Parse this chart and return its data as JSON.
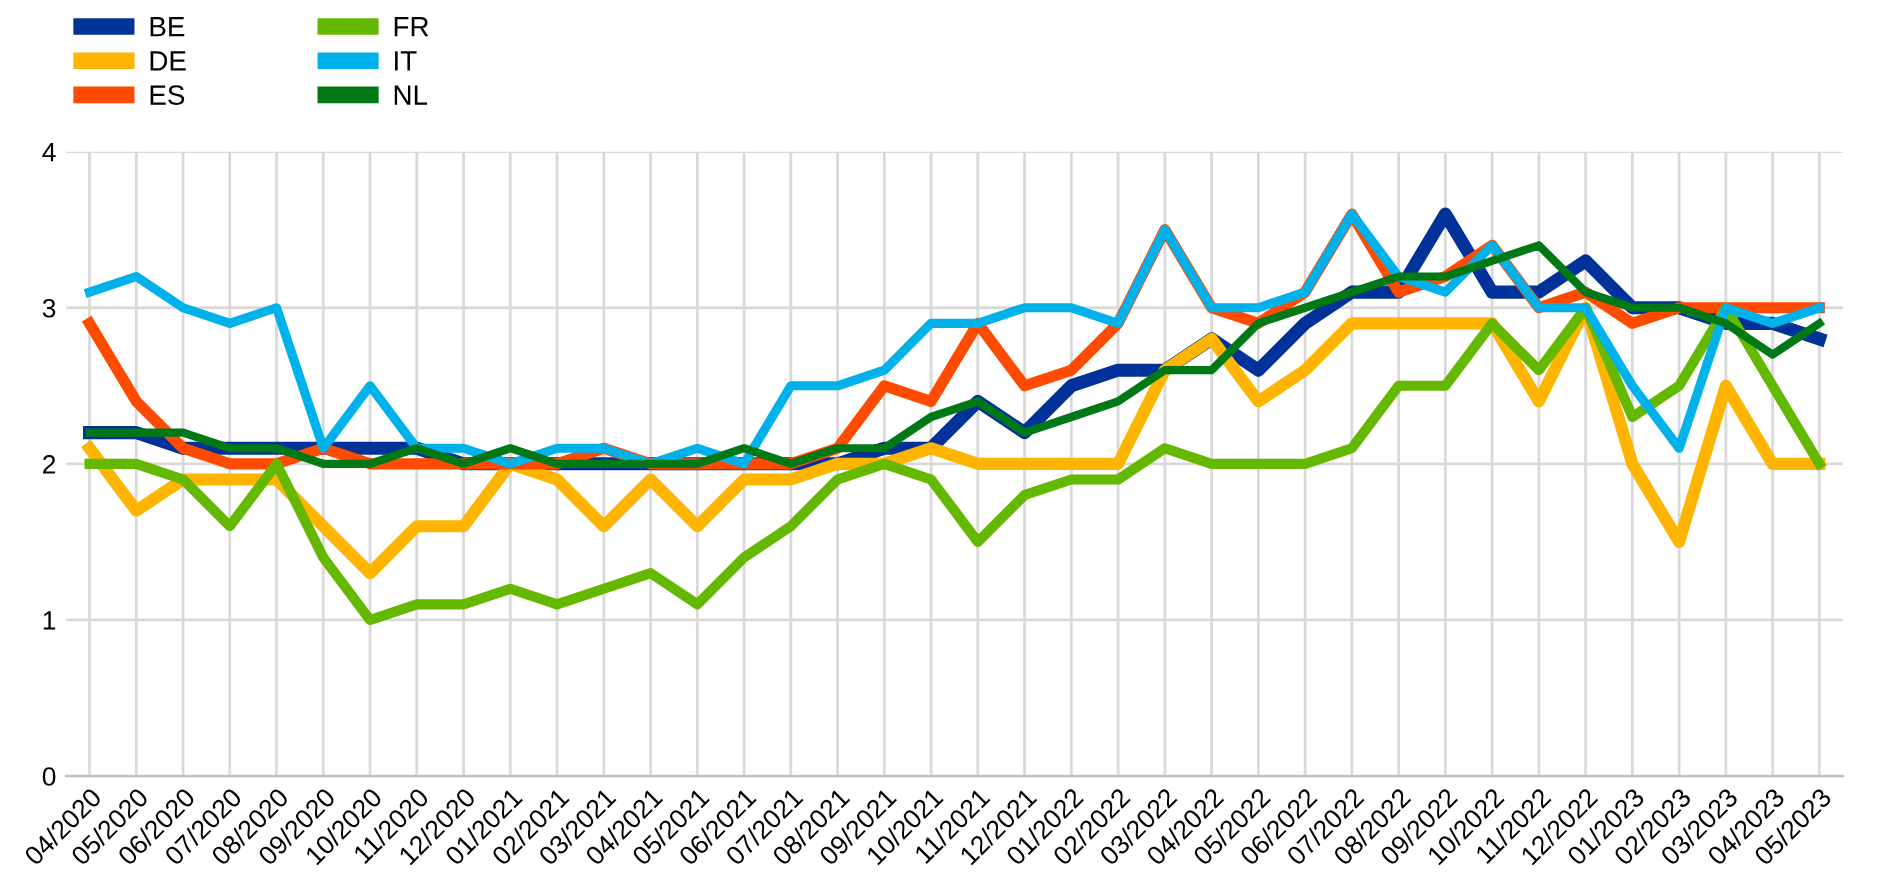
{
  "chart_data": {
    "type": "line",
    "categories": [
      "04/2020",
      "05/2020",
      "06/2020",
      "07/2020",
      "08/2020",
      "09/2020",
      "10/2020",
      "11/2020",
      "12/2020",
      "01/2021",
      "02/2021",
      "03/2021",
      "04/2021",
      "05/2021",
      "06/2021",
      "07/2021",
      "08/2021",
      "09/2021",
      "10/2021",
      "11/2021",
      "12/2021",
      "01/2022",
      "02/2022",
      "03/2022",
      "04/2022",
      "05/2022",
      "06/2022",
      "07/2022",
      "08/2022",
      "09/2022",
      "10/2022",
      "11/2022",
      "12/2022",
      "01/2023",
      "02/2023",
      "03/2023",
      "04/2023",
      "05/2023"
    ],
    "series": [
      {
        "name": "BE",
        "color": "#003299",
        "values": [
          2.2,
          2.2,
          2.1,
          2.1,
          2.1,
          2.1,
          2.1,
          2.1,
          2.0,
          2.0,
          2.0,
          2.0,
          2.0,
          2.0,
          2.0,
          2.0,
          2.0,
          2.1,
          2.1,
          2.4,
          2.2,
          2.5,
          2.6,
          2.6,
          2.8,
          2.6,
          2.9,
          3.1,
          3.1,
          3.6,
          3.1,
          3.1,
          3.3,
          3.0,
          3.0,
          2.9,
          2.9,
          2.8
        ]
      },
      {
        "name": "DE",
        "color": "#ffb400",
        "values": [
          2.1,
          1.7,
          1.9,
          1.9,
          1.9,
          1.6,
          1.3,
          1.6,
          1.6,
          2.0,
          1.9,
          1.6,
          1.9,
          1.6,
          1.9,
          1.9,
          2.0,
          2.0,
          2.1,
          2.0,
          2.0,
          2.0,
          2.0,
          2.6,
          2.8,
          2.4,
          2.6,
          2.9,
          2.9,
          2.9,
          2.9,
          2.4,
          3.0,
          2.0,
          1.5,
          2.5,
          2.0,
          2.0
        ]
      },
      {
        "name": "ES",
        "color": "#ff4b00",
        "values": [
          2.9,
          2.4,
          2.1,
          2.0,
          2.0,
          2.1,
          2.0,
          2.0,
          2.0,
          2.0,
          2.0,
          2.1,
          2.0,
          2.0,
          2.0,
          2.0,
          2.1,
          2.5,
          2.4,
          2.9,
          2.5,
          2.6,
          2.9,
          3.5,
          3.0,
          2.9,
          3.1,
          3.6,
          3.1,
          3.2,
          3.4,
          3.0,
          3.1,
          2.9,
          3.0,
          3.0,
          3.0,
          3.0
        ]
      },
      {
        "name": "FR",
        "color": "#65b800",
        "values": [
          2.0,
          2.0,
          1.9,
          1.6,
          2.0,
          1.4,
          1.0,
          1.1,
          1.1,
          1.2,
          1.1,
          1.2,
          1.3,
          1.1,
          1.4,
          1.6,
          1.9,
          2.0,
          1.9,
          1.5,
          1.8,
          1.9,
          1.9,
          2.1,
          2.0,
          2.0,
          2.0,
          2.1,
          2.5,
          2.5,
          2.9,
          2.6,
          3.0,
          2.3,
          2.5,
          3.0,
          2.5,
          2.0
        ]
      },
      {
        "name": "IT",
        "color": "#00b1ea",
        "values": [
          3.1,
          3.2,
          3.0,
          2.9,
          3.0,
          2.1,
          2.5,
          2.1,
          2.1,
          2.0,
          2.1,
          2.1,
          2.0,
          2.1,
          2.0,
          2.5,
          2.5,
          2.6,
          2.9,
          2.9,
          3.0,
          3.0,
          2.9,
          3.5,
          3.0,
          3.0,
          3.1,
          3.6,
          3.2,
          3.1,
          3.4,
          3.0,
          3.0,
          2.5,
          2.1,
          3.0,
          2.9,
          3.0
        ]
      },
      {
        "name": "NL",
        "color": "#007816",
        "values": [
          2.2,
          2.2,
          2.2,
          2.1,
          2.1,
          2.0,
          2.0,
          2.1,
          2.0,
          2.1,
          2.0,
          2.0,
          2.0,
          2.0,
          2.1,
          2.0,
          2.1,
          2.1,
          2.3,
          2.4,
          2.2,
          2.3,
          2.4,
          2.6,
          2.6,
          2.9,
          3.0,
          3.1,
          3.2,
          3.2,
          3.3,
          3.4,
          3.1,
          3.0,
          3.0,
          2.9,
          2.7,
          2.9
        ]
      }
    ],
    "ylim": [
      0,
      4
    ],
    "yticks": [
      0,
      1,
      2,
      3,
      4
    ],
    "grid": true,
    "legend": "top left",
    "marker": "none",
    "line_style": "solid"
  }
}
